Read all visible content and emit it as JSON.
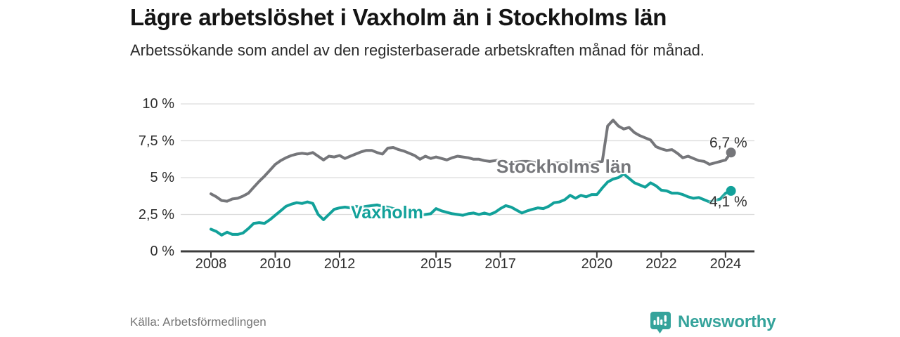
{
  "chart_data": {
    "type": "line",
    "title": "Lägre arbetslöshet i Vaxholm än i Stockholms län",
    "subtitle": "Arbetssökande som andel av den registerbaserade arbetskraften månad för månad.",
    "unit": "%",
    "grid": true,
    "xlim": [
      2007.06,
      2024.9
    ],
    "ylim": [
      0,
      10
    ],
    "x_tick_years": [
      2008,
      2010,
      2012,
      2015,
      2017,
      2020,
      2022,
      2024
    ],
    "x_tick_labels": [
      "2008",
      "2010",
      "2012",
      "2015",
      "2017",
      "2020",
      "2022",
      "2024"
    ],
    "y_tick_values": [
      10,
      7.5,
      5,
      2.5,
      0
    ],
    "y_tick_labels": [
      "10 %",
      "7,5 %",
      "5 %",
      "2,5 %",
      "0 %"
    ],
    "x_start_year": 2008.0,
    "x_step_years": 0.1667,
    "series": [
      {
        "name": "Stockholms län",
        "color": "#75767a",
        "end_label": "6,7 %",
        "end_value": 6.7,
        "values": [
          3.9,
          3.7,
          3.45,
          3.4,
          3.55,
          3.6,
          3.75,
          3.95,
          4.35,
          4.75,
          5.1,
          5.5,
          5.9,
          6.15,
          6.35,
          6.5,
          6.6,
          6.65,
          6.6,
          6.7,
          6.45,
          6.2,
          6.45,
          6.4,
          6.5,
          6.3,
          6.45,
          6.6,
          6.75,
          6.85,
          6.85,
          6.7,
          6.6,
          7.0,
          7.05,
          6.9,
          6.8,
          6.65,
          6.5,
          6.25,
          6.45,
          6.3,
          6.4,
          6.3,
          6.2,
          6.35,
          6.45,
          6.4,
          6.35,
          6.25,
          6.25,
          6.15,
          6.1,
          6.15,
          6.2,
          6.1,
          6.0,
          6.05,
          6.1,
          6.1,
          6.05,
          6.0,
          5.95,
          5.9,
          6.0,
          6.0,
          6.0,
          5.95,
          5.9,
          6.0,
          6.0,
          5.95,
          6.05,
          6.1,
          8.5,
          8.9,
          8.5,
          8.3,
          8.4,
          8.05,
          7.85,
          7.7,
          7.55,
          7.1,
          6.95,
          6.85,
          6.9,
          6.65,
          6.35,
          6.45,
          6.3,
          6.15,
          6.1,
          5.9,
          6.0,
          6.1,
          6.2,
          6.7
        ]
      },
      {
        "name": "Vaxholm",
        "color": "#12a19a",
        "end_label": "4,1 %",
        "end_value": 4.1,
        "values": [
          1.5,
          1.35,
          1.1,
          1.3,
          1.15,
          1.15,
          1.25,
          1.55,
          1.9,
          1.95,
          1.9,
          2.15,
          2.45,
          2.75,
          3.05,
          3.2,
          3.3,
          3.25,
          3.35,
          3.25,
          2.5,
          2.15,
          2.5,
          2.85,
          2.95,
          3.0,
          2.95,
          3.05,
          3.0,
          3.05,
          3.1,
          3.15,
          3.05,
          3.0,
          2.9,
          2.85,
          2.8,
          2.7,
          2.55,
          2.45,
          2.5,
          2.55,
          2.9,
          2.75,
          2.65,
          2.55,
          2.5,
          2.45,
          2.55,
          2.6,
          2.5,
          2.6,
          2.5,
          2.65,
          2.9,
          3.1,
          3.0,
          2.8,
          2.6,
          2.75,
          2.85,
          2.95,
          2.9,
          3.05,
          3.3,
          3.35,
          3.5,
          3.8,
          3.6,
          3.8,
          3.7,
          3.85,
          3.85,
          4.3,
          4.7,
          4.9,
          5.0,
          5.25,
          4.95,
          4.65,
          4.5,
          4.35,
          4.65,
          4.45,
          4.15,
          4.1,
          3.95,
          3.95,
          3.85,
          3.7,
          3.6,
          3.65,
          3.5,
          3.35,
          3.45,
          3.55,
          3.95,
          4.1
        ]
      }
    ],
    "colors": {
      "axis": "#3c3c3c",
      "gridline": "#dcdcdc",
      "tick_text": "#2e2e2e",
      "value_label_text": "#2e2e2e"
    }
  },
  "footer": {
    "source": "Källa: Arbetsförmedlingen",
    "brand": "Newsworthy",
    "brand_color": "#35a39b"
  }
}
